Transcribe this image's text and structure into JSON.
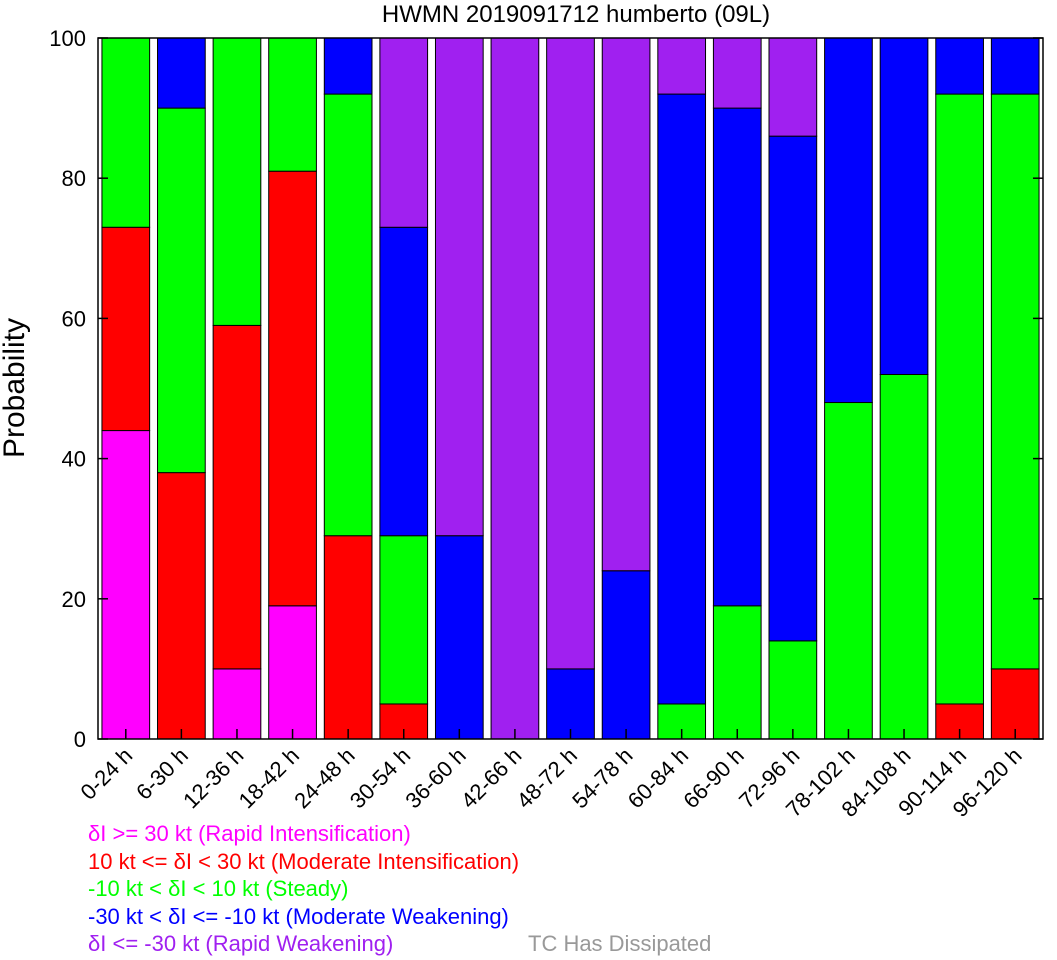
{
  "chart_data": {
    "type": "bar",
    "stacked": true,
    "title": "HWMN 2019091712 humberto (09L)",
    "ylabel": "Probability",
    "xlabel": "",
    "ylim": [
      0,
      100
    ],
    "yticks": [
      "0",
      "20",
      "40",
      "60",
      "80",
      "100"
    ],
    "grid": false,
    "categories": [
      "0-24 h",
      "6-30 h",
      "12-36 h",
      "18-42 h",
      "24-48 h",
      "30-54 h",
      "36-60 h",
      "42-66 h",
      "48-72 h",
      "54-78 h",
      "60-84 h",
      "66-90 h",
      "72-96 h",
      "78-102 h",
      "84-108 h",
      "90-114 h",
      "96-120 h"
    ],
    "series": [
      {
        "name": "δI >= 30 kt (Rapid Intensification)",
        "color": "#ff00ff",
        "values": [
          44,
          0,
          10,
          19,
          0,
          0,
          0,
          0,
          0,
          0,
          0,
          0,
          0,
          0,
          0,
          0,
          0
        ]
      },
      {
        "name": "10 kt <= δI < 30 kt (Moderate Intensification)",
        "color": "#ff0000",
        "values": [
          29,
          38,
          49,
          62,
          29,
          5,
          0,
          0,
          0,
          0,
          0,
          0,
          0,
          0,
          0,
          5,
          10
        ]
      },
      {
        "name": "-10 kt < δI < 10 kt (Steady)",
        "color": "#00ff00",
        "values": [
          27,
          52,
          41,
          19,
          63,
          24,
          0,
          0,
          0,
          0,
          5,
          19,
          14,
          48,
          52,
          87,
          82
        ]
      },
      {
        "name": "-30 kt < δI <= -10 kt (Moderate Weakening)",
        "color": "#0000ff",
        "values": [
          0,
          10,
          0,
          0,
          8,
          44,
          29,
          0,
          10,
          24,
          87,
          71,
          72,
          52,
          48,
          8,
          8
        ]
      },
      {
        "name": "δI <= -30 kt (Rapid Weakening)",
        "color": "#a020f0",
        "values": [
          0,
          0,
          0,
          0,
          0,
          27,
          71,
          100,
          90,
          76,
          8,
          10,
          14,
          0,
          0,
          0,
          0
        ]
      }
    ],
    "legend_extra": {
      "label": "TC Has Dissipated",
      "color": "#999999"
    },
    "legend_position": "bottom-left"
  }
}
